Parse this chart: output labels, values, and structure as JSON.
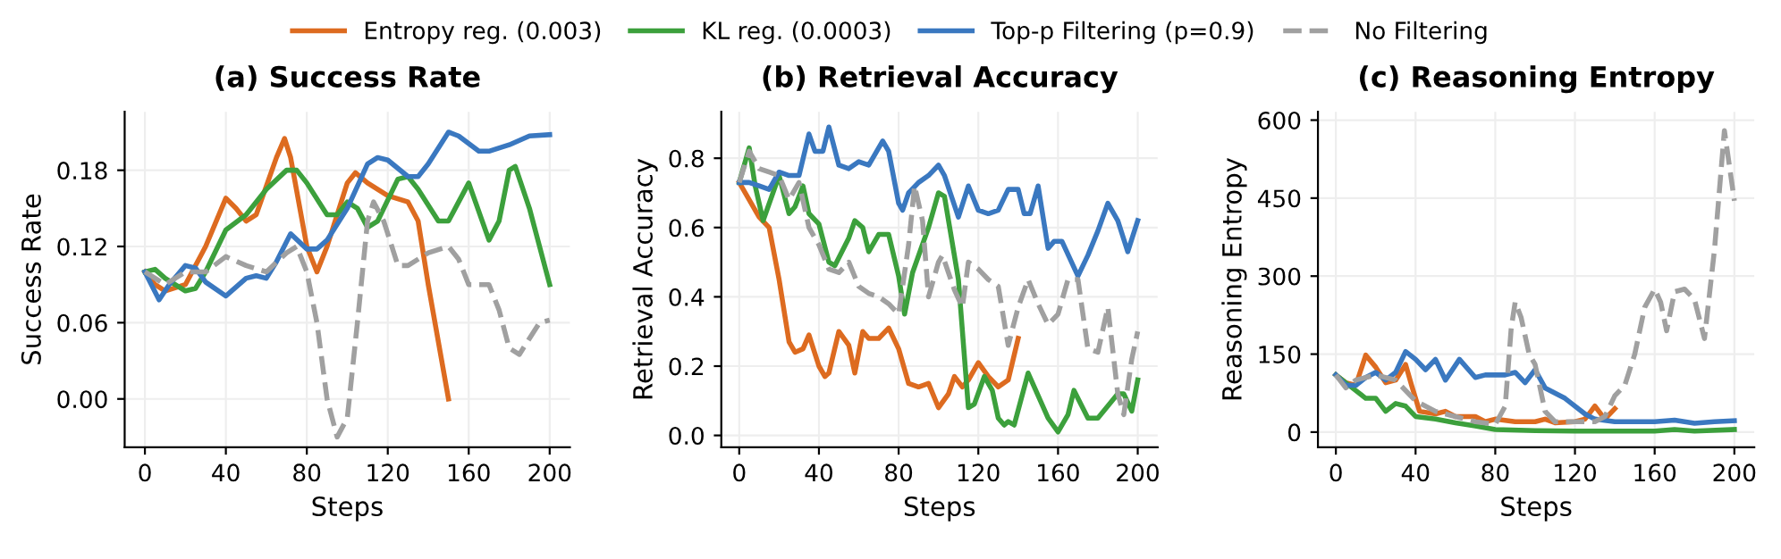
{
  "chart_data": [
    {
      "type": "line",
      "title": "(a) Success Rate",
      "xlabel": "Steps",
      "ylabel": "Success Rate",
      "xlim": [
        -10,
        210
      ],
      "ylim": [
        -0.038,
        0.226
      ],
      "xticks": [
        0,
        40,
        80,
        120,
        160,
        200
      ],
      "yticks": [
        {
          "value": 0,
          "label": "0.00"
        },
        {
          "value": 0.06,
          "label": "0.06"
        },
        {
          "value": 0.12,
          "label": "0.12"
        },
        {
          "value": 0.18,
          "label": "0.18"
        }
      ],
      "grid": true,
      "legend": "top",
      "series": [
        {
          "name": "Entropy reg. (0.003)",
          "color": "#dd6b20",
          "x": [
            0,
            5,
            10,
            20,
            30,
            40,
            45,
            50,
            55,
            65,
            69,
            72,
            80,
            85,
            90,
            100,
            104,
            110,
            120,
            130,
            135,
            140,
            150
          ],
          "values": [
            0.1,
            0.09,
            0.085,
            0.09,
            0.12,
            0.158,
            0.15,
            0.14,
            0.145,
            0.19,
            0.205,
            0.19,
            0.12,
            0.1,
            0.12,
            0.17,
            0.178,
            0.17,
            0.16,
            0.155,
            0.14,
            0.09,
            0.0
          ]
        },
        {
          "name": "KL reg. (0.0003)",
          "color": "#3ca03c",
          "x": [
            0,
            5,
            10,
            20,
            25,
            30,
            40,
            50,
            60,
            70,
            75,
            80,
            90,
            95,
            100,
            105,
            110,
            115,
            125,
            130,
            135,
            145,
            150,
            160,
            170,
            175,
            180,
            183,
            190,
            200
          ],
          "values": [
            0.1,
            0.102,
            0.095,
            0.085,
            0.087,
            0.1,
            0.133,
            0.145,
            0.165,
            0.18,
            0.18,
            0.17,
            0.145,
            0.145,
            0.155,
            0.15,
            0.135,
            0.14,
            0.173,
            0.175,
            0.165,
            0.14,
            0.14,
            0.17,
            0.125,
            0.14,
            0.18,
            0.183,
            0.15,
            0.09
          ]
        },
        {
          "name": "Top-p Filtering (p=0.9)",
          "color": "#3a78c0",
          "x": [
            0,
            7,
            12,
            20,
            25,
            30,
            40,
            50,
            55,
            60,
            65,
            72,
            80,
            85,
            90,
            100,
            110,
            115,
            120,
            130,
            135,
            140,
            150,
            155,
            165,
            170,
            180,
            190,
            200
          ],
          "values": [
            0.1,
            0.078,
            0.09,
            0.105,
            0.103,
            0.092,
            0.081,
            0.095,
            0.097,
            0.095,
            0.108,
            0.13,
            0.118,
            0.118,
            0.125,
            0.15,
            0.185,
            0.19,
            0.188,
            0.175,
            0.175,
            0.185,
            0.21,
            0.207,
            0.195,
            0.195,
            0.2,
            0.207,
            0.208
          ]
        },
        {
          "name": "No Filtering",
          "color": "#a0a0a0",
          "line_style": "dashed",
          "x": [
            0,
            10,
            20,
            30,
            40,
            50,
            60,
            70,
            75,
            80,
            85,
            90,
            95,
            100,
            105,
            110,
            113,
            118,
            125,
            130,
            140,
            150,
            155,
            160,
            170,
            175,
            180,
            185,
            195,
            200
          ],
          "values": [
            0.1,
            0.09,
            0.1,
            0.1,
            0.112,
            0.105,
            0.1,
            0.115,
            0.12,
            0.1,
            0.06,
            0.0,
            -0.03,
            -0.015,
            0.06,
            0.14,
            0.155,
            0.14,
            0.105,
            0.105,
            0.115,
            0.12,
            0.11,
            0.09,
            0.09,
            0.07,
            0.04,
            0.035,
            0.06,
            0.062
          ]
        }
      ]
    },
    {
      "type": "line",
      "title": "(b) Retrieval Accuracy",
      "xlabel": "Steps",
      "ylabel": "Retrieval Accuracy",
      "xlim": [
        -9,
        210
      ],
      "ylim": [
        -0.034,
        0.934
      ],
      "xticks": [
        0,
        40,
        80,
        120,
        160,
        200
      ],
      "yticks": [
        {
          "value": 0,
          "label": "0.0"
        },
        0.2,
        0.4,
        0.6,
        0.8
      ],
      "grid": true,
      "series": [
        {
          "color": "#dd6b20",
          "x": [
            0,
            10,
            15,
            20,
            25,
            28,
            32,
            35,
            40,
            43,
            45,
            50,
            55,
            58,
            62,
            65,
            70,
            75,
            80,
            85,
            90,
            95,
            100,
            105,
            108,
            112,
            115,
            120,
            125,
            130,
            135,
            140
          ],
          "values": [
            0.73,
            0.63,
            0.6,
            0.45,
            0.27,
            0.24,
            0.25,
            0.29,
            0.2,
            0.17,
            0.18,
            0.3,
            0.26,
            0.18,
            0.3,
            0.28,
            0.28,
            0.31,
            0.25,
            0.15,
            0.14,
            0.15,
            0.08,
            0.12,
            0.17,
            0.14,
            0.16,
            0.21,
            0.17,
            0.14,
            0.16,
            0.28
          ]
        },
        {
          "color": "#3ca03c",
          "x": [
            0,
            5,
            8,
            12,
            20,
            25,
            28,
            32,
            35,
            40,
            45,
            48,
            55,
            58,
            62,
            65,
            70,
            75,
            80,
            83,
            87,
            95,
            100,
            103,
            110,
            115,
            118,
            123,
            127,
            130,
            133,
            135,
            138,
            145,
            155,
            160,
            165,
            168,
            175,
            180,
            190,
            193,
            197,
            200
          ],
          "values": [
            0.73,
            0.83,
            0.72,
            0.62,
            0.75,
            0.64,
            0.66,
            0.72,
            0.64,
            0.61,
            0.5,
            0.49,
            0.57,
            0.62,
            0.6,
            0.53,
            0.58,
            0.58,
            0.46,
            0.35,
            0.47,
            0.6,
            0.7,
            0.69,
            0.45,
            0.08,
            0.09,
            0.17,
            0.13,
            0.05,
            0.03,
            0.04,
            0.03,
            0.18,
            0.05,
            0.01,
            0.06,
            0.13,
            0.05,
            0.05,
            0.12,
            0.12,
            0.07,
            0.16
          ]
        },
        {
          "color": "#3a78c0",
          "x": [
            0,
            5,
            10,
            15,
            20,
            25,
            30,
            35,
            38,
            42,
            45,
            50,
            55,
            60,
            65,
            72,
            75,
            80,
            82,
            85,
            90,
            95,
            100,
            103,
            110,
            115,
            120,
            125,
            130,
            135,
            140,
            143,
            146,
            150,
            155,
            158,
            162,
            170,
            175,
            180,
            185,
            190,
            195,
            200
          ],
          "values": [
            0.73,
            0.73,
            0.72,
            0.71,
            0.76,
            0.75,
            0.75,
            0.87,
            0.82,
            0.82,
            0.89,
            0.78,
            0.77,
            0.79,
            0.78,
            0.85,
            0.82,
            0.67,
            0.65,
            0.7,
            0.73,
            0.75,
            0.78,
            0.75,
            0.63,
            0.72,
            0.65,
            0.64,
            0.65,
            0.71,
            0.71,
            0.64,
            0.64,
            0.72,
            0.54,
            0.56,
            0.56,
            0.46,
            0.52,
            0.59,
            0.67,
            0.62,
            0.53,
            0.62
          ]
        },
        {
          "color": "#a0a0a0",
          "line_style": "dashed",
          "x": [
            0,
            5,
            10,
            15,
            20,
            25,
            30,
            35,
            40,
            45,
            50,
            55,
            60,
            65,
            70,
            75,
            80,
            85,
            88,
            92,
            95,
            100,
            102,
            108,
            112,
            115,
            120,
            125,
            130,
            135,
            140,
            145,
            150,
            155,
            160,
            165,
            170,
            175,
            180,
            185,
            190,
            193,
            197,
            200
          ],
          "values": [
            0.73,
            0.82,
            0.77,
            0.76,
            0.75,
            0.68,
            0.73,
            0.6,
            0.55,
            0.48,
            0.47,
            0.5,
            0.43,
            0.41,
            0.4,
            0.38,
            0.35,
            0.55,
            0.72,
            0.62,
            0.4,
            0.5,
            0.52,
            0.42,
            0.37,
            0.5,
            0.48,
            0.45,
            0.43,
            0.26,
            0.37,
            0.45,
            0.38,
            0.32,
            0.35,
            0.45,
            0.45,
            0.25,
            0.24,
            0.37,
            0.12,
            0.06,
            0.22,
            0.3
          ]
        }
      ]
    },
    {
      "type": "line",
      "title": "(c) Reasoning Entropy",
      "xlabel": "Steps",
      "ylabel": "Reasoning Entropy",
      "xlim": [
        -9,
        210
      ],
      "ylim": [
        -29,
        616
      ],
      "xticks": [
        0,
        40,
        80,
        120,
        160,
        200
      ],
      "yticks": [
        0,
        150,
        300,
        450,
        600
      ],
      "grid": true,
      "series": [
        {
          "color": "#dd6b20",
          "x": [
            0,
            5,
            10,
            15,
            20,
            25,
            30,
            35,
            38,
            42,
            50,
            55,
            60,
            70,
            75,
            80,
            90,
            100,
            105,
            110,
            120,
            125,
            130,
            135,
            140
          ],
          "values": [
            110,
            95,
            90,
            148,
            125,
            95,
            100,
            130,
            90,
            40,
            35,
            40,
            30,
            30,
            20,
            25,
            20,
            20,
            25,
            18,
            20,
            25,
            50,
            25,
            45
          ]
        },
        {
          "color": "#3ca03c",
          "x": [
            0,
            10,
            15,
            20,
            25,
            30,
            35,
            40,
            50,
            60,
            70,
            80,
            100,
            120,
            140,
            160,
            170,
            180,
            200
          ],
          "values": [
            110,
            80,
            65,
            65,
            40,
            55,
            50,
            30,
            25,
            18,
            12,
            5,
            3,
            2,
            2,
            2,
            5,
            2,
            5
          ]
        },
        {
          "color": "#3a78c0",
          "x": [
            0,
            5,
            10,
            15,
            20,
            25,
            30,
            35,
            40,
            45,
            50,
            55,
            62,
            70,
            75,
            80,
            85,
            90,
            95,
            100,
            105,
            115,
            125,
            130,
            140,
            160,
            170,
            180,
            190,
            200
          ],
          "values": [
            110,
            90,
            90,
            105,
            115,
            100,
            115,
            155,
            140,
            120,
            140,
            100,
            140,
            105,
            110,
            110,
            110,
            115,
            95,
            120,
            85,
            65,
            35,
            25,
            20,
            20,
            23,
            17,
            20,
            22
          ]
        },
        {
          "color": "#a0a0a0",
          "line_style": "dashed",
          "x": [
            0,
            5,
            10,
            20,
            30,
            40,
            50,
            60,
            70,
            80,
            85,
            88,
            90,
            93,
            97,
            100,
            105,
            110,
            120,
            130,
            135,
            140,
            145,
            150,
            155,
            160,
            163,
            166,
            170,
            175,
            180,
            185,
            190,
            195,
            200
          ],
          "values": [
            110,
            85,
            100,
            110,
            100,
            60,
            40,
            30,
            20,
            15,
            50,
            200,
            250,
            220,
            150,
            130,
            40,
            20,
            20,
            20,
            30,
            70,
            90,
            150,
            240,
            275,
            250,
            195,
            270,
            275,
            255,
            180,
            350,
            580,
            445
          ]
        }
      ]
    }
  ]
}
